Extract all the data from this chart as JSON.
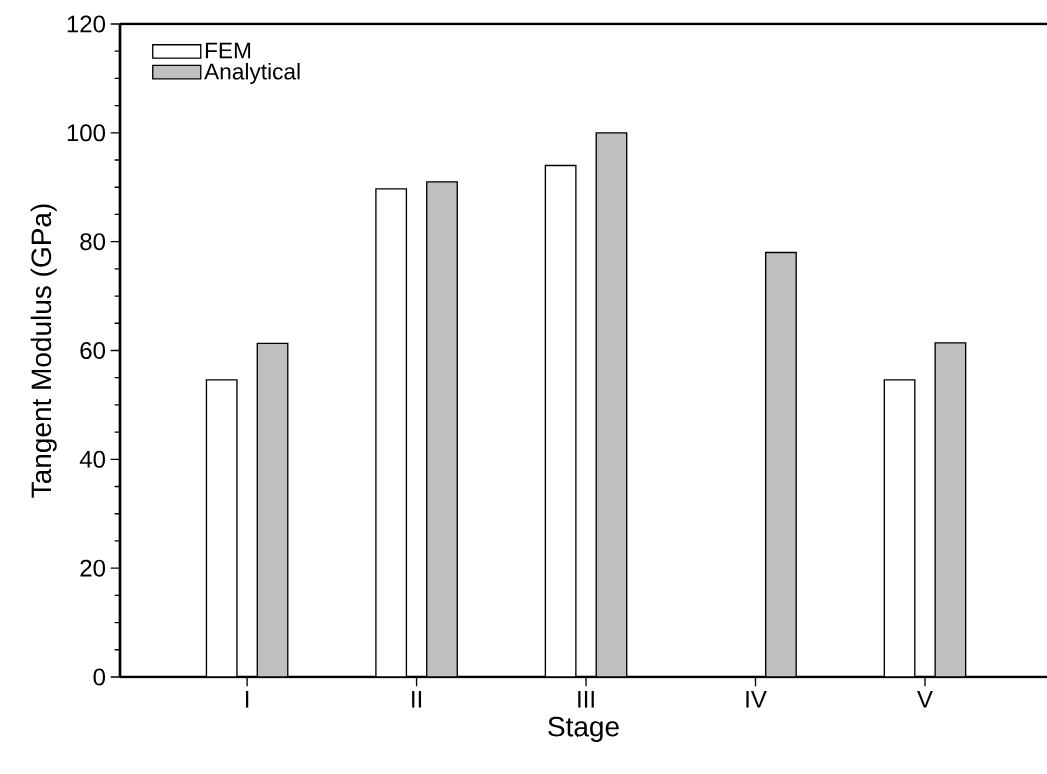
{
  "chart_data": {
    "type": "bar",
    "xlabel": "Stage",
    "ylabel": "Tangent Modulus (GPa)",
    "categories": [
      "I",
      "II",
      "III",
      "IV",
      "V"
    ],
    "series": [
      {
        "name": "FEM",
        "color": "#ffffff",
        "values": [
          54.6,
          89.7,
          94.0,
          null,
          54.6
        ]
      },
      {
        "name": "Analytical",
        "color": "#c0c0c0",
        "values": [
          61.3,
          91.0,
          100.0,
          78.0,
          61.4
        ]
      }
    ],
    "ylim": [
      0,
      120
    ],
    "yticks": [
      0,
      20,
      40,
      60,
      80,
      100,
      120
    ],
    "legend": "top left"
  }
}
